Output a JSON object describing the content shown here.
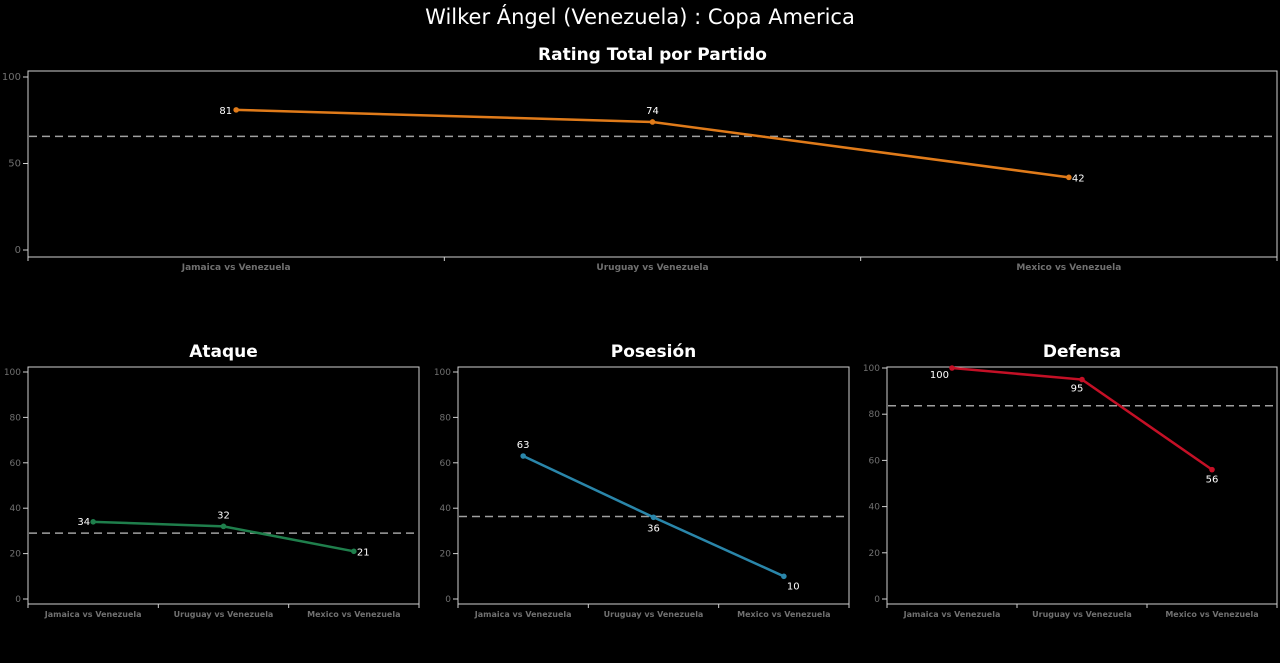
{
  "title": "Wilker Ángel (Venezuela) :  Copa  America",
  "colors": {
    "background": "#000000",
    "axis": "#d0d0d0",
    "tick_label": "#707070",
    "mean_line": "#a0a0a0",
    "total": "#e07b1a",
    "ataque": "#1f7f4c",
    "posesion": "#2a86aa",
    "defensa": "#c41026"
  },
  "chart_data": [
    {
      "id": "total",
      "type": "line",
      "title": "Rating Total por Partido",
      "categories": [
        "Jamaica vs Venezuela",
        "Uruguay vs Venezuela",
        "Mexico vs Venezuela"
      ],
      "values": [
        81,
        74,
        42
      ],
      "ylim": [
        0,
        100
      ],
      "yticks": [
        "0",
        "50",
        "100"
      ],
      "mean_line": "dashed",
      "grid": false
    },
    {
      "id": "ataque",
      "type": "line",
      "title": "Ataque",
      "categories": [
        "Jamaica vs Venezuela",
        "Uruguay vs Venezuela",
        "Mexico vs Venezuela"
      ],
      "values": [
        34,
        32,
        21
      ],
      "ylim": [
        0,
        100
      ],
      "yticks": [
        "0",
        "20",
        "40",
        "60",
        "80",
        "100"
      ],
      "mean_line": "dashed",
      "grid": false
    },
    {
      "id": "posesion",
      "type": "line",
      "title": "Posesión",
      "categories": [
        "Jamaica vs Venezuela",
        "Uruguay vs Venezuela",
        "Mexico vs Venezuela"
      ],
      "values": [
        63,
        36,
        10
      ],
      "ylim": [
        0,
        100
      ],
      "yticks": [
        "0",
        "20",
        "40",
        "60",
        "80",
        "100"
      ],
      "mean_line": "dashed",
      "grid": false
    },
    {
      "id": "defensa",
      "type": "line",
      "title": "Defensa",
      "categories": [
        "Jamaica vs Venezuela",
        "Uruguay vs Venezuela",
        "Mexico vs Venezuela"
      ],
      "values": [
        100,
        95,
        56
      ],
      "ylim": [
        0,
        100
      ],
      "yticks": [
        "0",
        "20",
        "40",
        "60",
        "80",
        "100"
      ],
      "mean_line": "dashed",
      "grid": false
    }
  ]
}
